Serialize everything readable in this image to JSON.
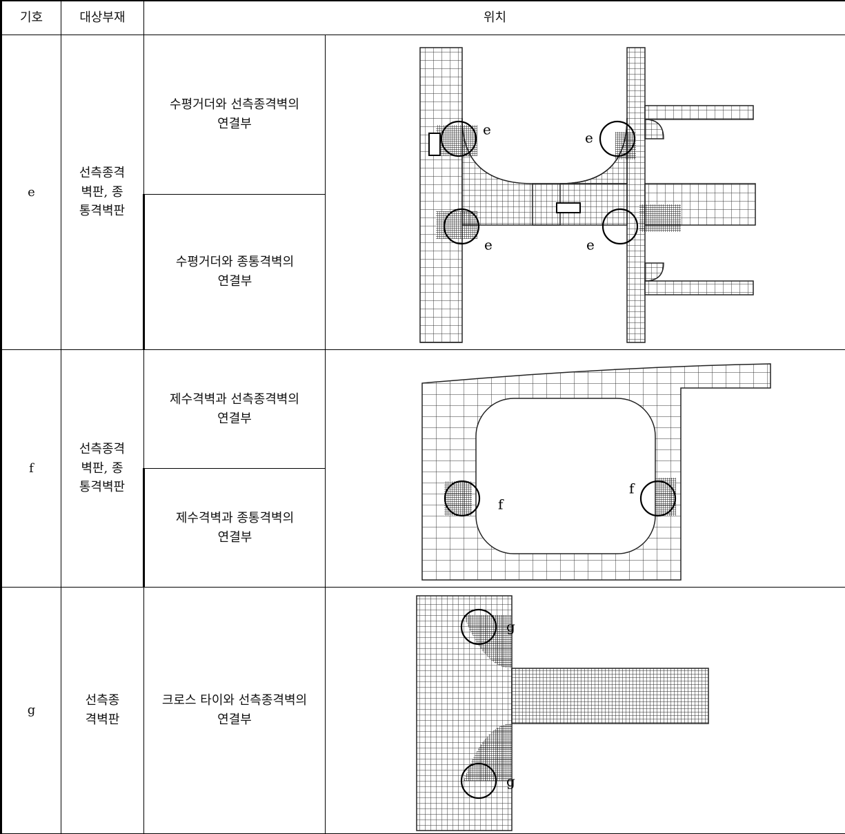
{
  "table": {
    "header": [
      "기호",
      "대상부재",
      "위치"
    ],
    "rows": [
      {
        "symbol": "e",
        "member": "선측종격벽판, 종통격벽판",
        "locations": [
          "수평거더와 선측종격벽의 연결부",
          "수평거더와 종통격벽의 연결부"
        ],
        "figure_labels": [
          "e",
          "e",
          "e",
          "e"
        ]
      },
      {
        "symbol": "f",
        "member": "선측종격벽판, 종통격벽판",
        "locations": [
          "제수격벽과 선측종격벽의 연결부",
          "제수격벽과 종통격벽의 연결부"
        ],
        "figure_labels": [
          "f",
          "f"
        ]
      },
      {
        "symbol": "g",
        "member": "선측종격벽판",
        "locations": [
          "크로스 타이와 선측종격벽의 연결부"
        ],
        "figure_labels": [
          "g",
          "g"
        ]
      }
    ]
  }
}
